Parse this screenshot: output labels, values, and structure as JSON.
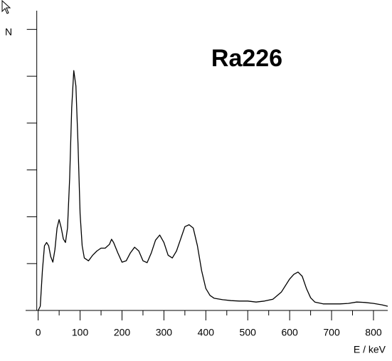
{
  "chart_data": {
    "type": "line",
    "title": "Ra226",
    "ylabel": "N",
    "xlabel": "E / keV",
    "x": [
      0,
      5,
      10,
      15,
      20,
      25,
      30,
      35,
      40,
      45,
      50,
      55,
      60,
      65,
      70,
      75,
      80,
      85,
      90,
      95,
      100,
      105,
      110,
      120,
      130,
      140,
      150,
      160,
      170,
      175,
      180,
      190,
      200,
      210,
      220,
      230,
      240,
      250,
      260,
      270,
      280,
      290,
      300,
      310,
      320,
      330,
      340,
      350,
      360,
      370,
      380,
      390,
      400,
      410,
      420,
      440,
      460,
      480,
      500,
      520,
      540,
      560,
      580,
      600,
      610,
      620,
      630,
      640,
      650,
      660,
      680,
      700,
      720,
      740,
      760,
      780,
      800,
      820,
      834
    ],
    "values": [
      0,
      0.09,
      0.85,
      1.38,
      1.45,
      1.38,
      1.15,
      1.03,
      1.3,
      1.76,
      1.94,
      1.76,
      1.53,
      1.45,
      1.76,
      2.82,
      4.33,
      5.12,
      4.79,
      3.58,
      2.06,
      1.38,
      1.12,
      1.06,
      1.18,
      1.27,
      1.33,
      1.33,
      1.41,
      1.52,
      1.45,
      1.23,
      1.03,
      1.06,
      1.23,
      1.35,
      1.27,
      1.06,
      1.02,
      1.23,
      1.5,
      1.61,
      1.45,
      1.18,
      1.12,
      1.27,
      1.53,
      1.79,
      1.83,
      1.76,
      1.38,
      0.85,
      0.47,
      0.32,
      0.26,
      0.23,
      0.21,
      0.2,
      0.2,
      0.18,
      0.2,
      0.24,
      0.39,
      0.67,
      0.77,
      0.82,
      0.73,
      0.47,
      0.27,
      0.18,
      0.14,
      0.14,
      0.14,
      0.15,
      0.18,
      0.17,
      0.15,
      0.12,
      0.09
    ],
    "color": "#000000",
    "xlim": [
      -30,
      834
    ],
    "xticks": [
      0,
      100,
      200,
      300,
      400,
      500,
      600,
      700,
      800
    ],
    "xminorticks": [
      50,
      150,
      250,
      350,
      450,
      550,
      650,
      750
    ],
    "ylim": [
      0,
      6.4
    ],
    "yticks": [
      0,
      1,
      2,
      3,
      4,
      5,
      6
    ]
  }
}
